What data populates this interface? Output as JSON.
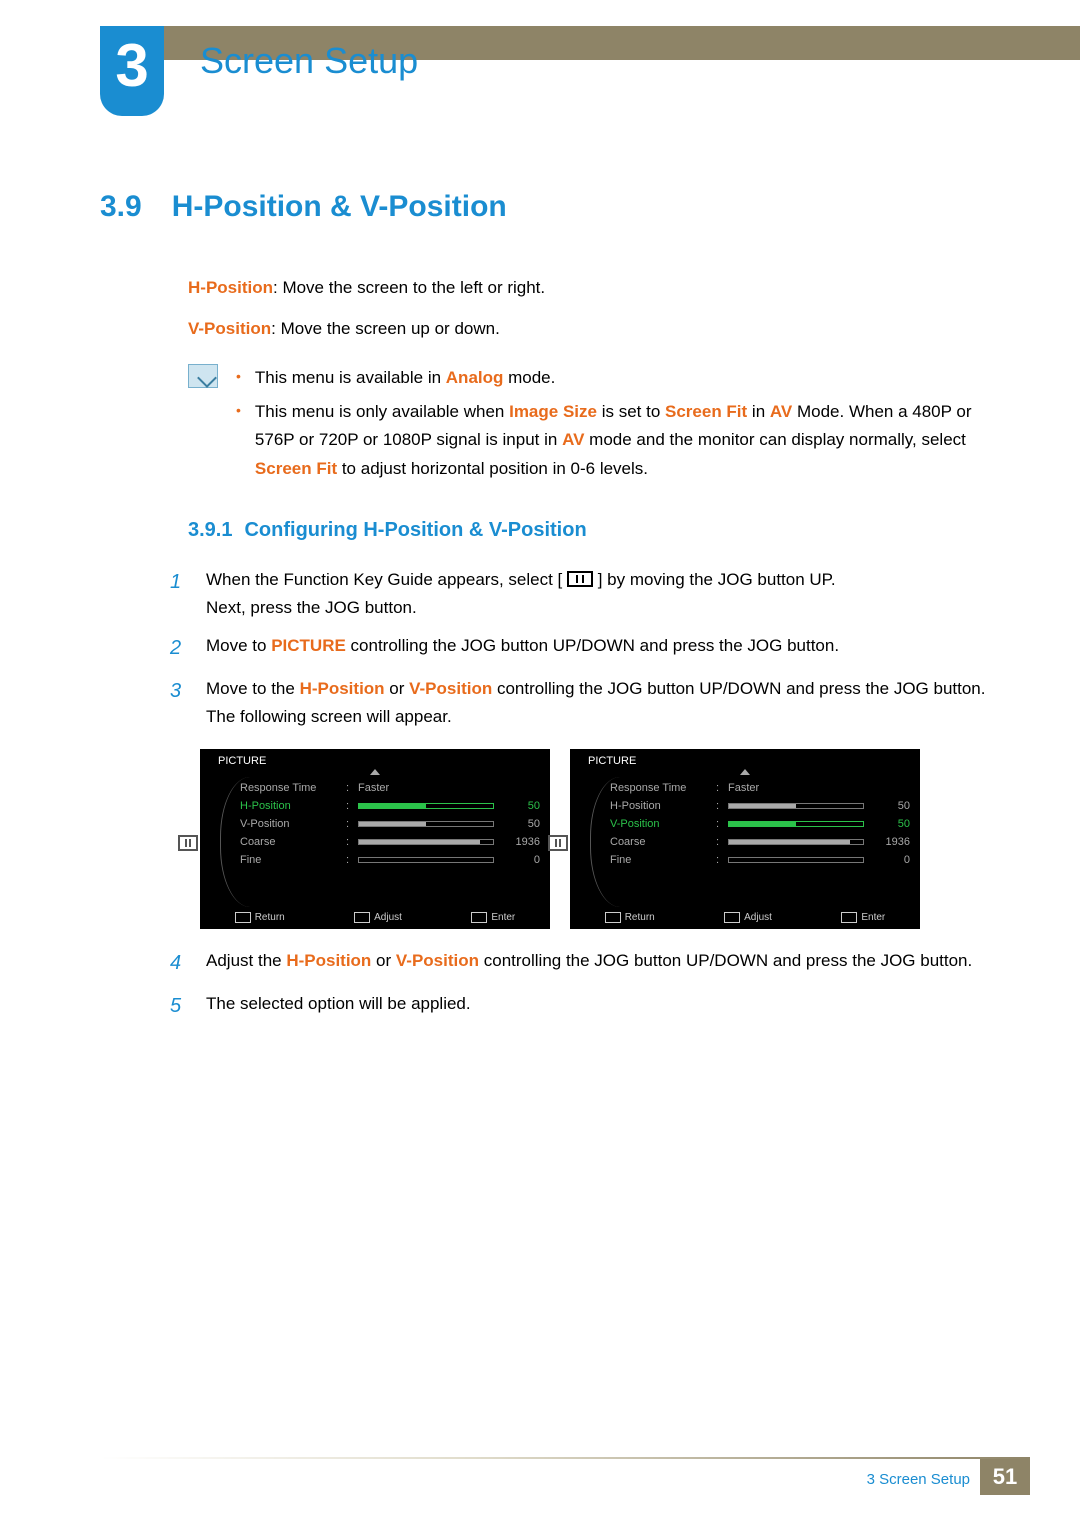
{
  "chapter": {
    "number": "3",
    "title": "Screen Setup"
  },
  "section": {
    "number": "3.9",
    "title": "H-Position & V-Position"
  },
  "definitions": {
    "hpos_label": "H-Position",
    "hpos_text": ": Move the screen to the left or right.",
    "vpos_label": "V-Position",
    "vpos_text": ": Move the screen up or down."
  },
  "notes": {
    "n1_pre": "This menu is available in ",
    "n1_b1": "Analog",
    "n1_post": " mode.",
    "n2_pre": "This menu is only available when ",
    "n2_b1": "Image Size",
    "n2_mid1": " is set to ",
    "n2_b2": "Screen Fit",
    "n2_mid2": " in ",
    "n2_b3": "AV",
    "n2_mid3": " Mode. When a 480P or 576P or 720P or 1080P signal is input in ",
    "n2_b4": "AV",
    "n2_mid4": " mode and the monitor can display normally, select ",
    "n2_b5": "Screen Fit",
    "n2_post": " to adjust horizontal position in 0-6 levels."
  },
  "subsection": {
    "number": "3.9.1",
    "title": "Configuring H-Position & V-Position"
  },
  "steps": {
    "s1a": "When the Function Key Guide appears, select [",
    "s1b": "] by moving the JOG button UP.",
    "s1c": "Next, press the JOG button.",
    "s2a": "Move to ",
    "s2b": "PICTURE",
    "s2c": " controlling the JOG button UP/DOWN and press the JOG button.",
    "s3a": "Move to the ",
    "s3b": "H-Position",
    "s3c": " or  ",
    "s3d": "V-Position",
    "s3e": " controlling the JOG button UP/DOWN and press the JOG button. The following screen will appear.",
    "s4a": "Adjust the ",
    "s4b": "H-Position",
    "s4c": " or ",
    "s4d": "V-Position",
    "s4e": " controlling the JOG button UP/DOWN and press the JOG button.",
    "s5": "The selected option will be applied."
  },
  "osd": {
    "title": "PICTURE",
    "items": [
      {
        "label": "Response Time",
        "text": "Faster",
        "bar": null,
        "val": ""
      },
      {
        "label": "H-Position",
        "text": null,
        "bar": 50,
        "val": "50"
      },
      {
        "label": "V-Position",
        "text": null,
        "bar": 50,
        "val": "50"
      },
      {
        "label": "Coarse",
        "text": null,
        "bar": 90,
        "val": "1936"
      },
      {
        "label": "Fine",
        "text": null,
        "bar": 0,
        "val": "0"
      }
    ],
    "left_selected_index": 1,
    "right_selected_index": 2,
    "footer": {
      "return": "Return",
      "adjust": "Adjust",
      "enter": "Enter"
    }
  },
  "footer": {
    "text": "3 Screen Setup",
    "page": "51"
  },
  "colors": {
    "accent_blue": "#1a8dd1",
    "accent_orange": "#e86b1c",
    "top_bar": "#8e8467",
    "osd_bg": "#000000",
    "osd_text": "#a9a9a9",
    "osd_selected": "#2bc24a"
  }
}
